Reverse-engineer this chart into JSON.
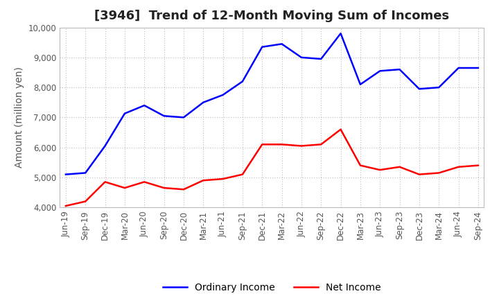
{
  "title": "[3946]  Trend of 12-Month Moving Sum of Incomes",
  "ylabel": "Amount (million yen)",
  "ylim": [
    4000,
    10000
  ],
  "yticks": [
    4000,
    5000,
    6000,
    7000,
    8000,
    9000,
    10000
  ],
  "x_labels": [
    "Jun-19",
    "Sep-19",
    "Dec-19",
    "Mar-20",
    "Jun-20",
    "Sep-20",
    "Dec-20",
    "Mar-21",
    "Jun-21",
    "Sep-21",
    "Dec-21",
    "Mar-22",
    "Jun-22",
    "Sep-22",
    "Dec-22",
    "Mar-23",
    "Jun-23",
    "Sep-23",
    "Dec-23",
    "Mar-24",
    "Jun-24",
    "Sep-24"
  ],
  "ordinary_income": [
    5100,
    5150,
    6050,
    7130,
    7400,
    7050,
    7000,
    7500,
    7750,
    8200,
    9350,
    9450,
    9000,
    8950,
    9800,
    8100,
    8550,
    8600,
    7950,
    8000,
    8650,
    8650
  ],
  "net_income": [
    4050,
    4200,
    4850,
    4650,
    4850,
    4650,
    4600,
    4900,
    4950,
    5100,
    6100,
    6100,
    6050,
    6100,
    6600,
    5400,
    5250,
    5350,
    5100,
    5150,
    5350,
    5400
  ],
  "ordinary_color": "#0000FF",
  "net_color": "#FF0000",
  "bg_color": "#FFFFFF",
  "plot_bg_color": "#FFFFFF",
  "grid_color": "#BBBBBB",
  "title_fontsize": 13,
  "label_fontsize": 10,
  "tick_fontsize": 8.5
}
